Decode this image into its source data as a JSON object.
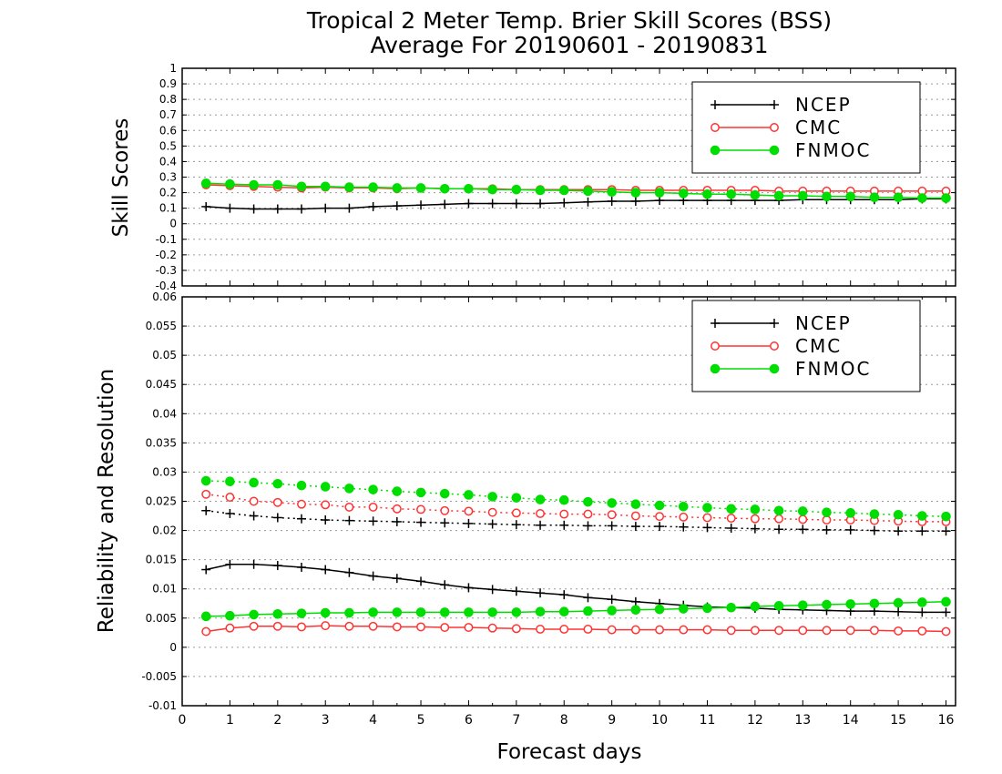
{
  "title": {
    "line1": "Tropical 2 Meter Temp. Brier Skill Scores (BSS)",
    "line2": "Average For 20190601 - 20190831"
  },
  "chart_data": [
    {
      "type": "line",
      "ylabel": "Skill Scores",
      "xlabel": "",
      "xlim": [
        0,
        16.2
      ],
      "ylim": [
        -0.4,
        1
      ],
      "yticks": [
        "1",
        "0.9",
        "0.8",
        "0.7",
        "0.6",
        "0.5",
        "0.4",
        "0.3",
        "0.2",
        "0.1",
        "0",
        "-0.1",
        "-0.2",
        "-0.3",
        "-0.4"
      ],
      "grid": true,
      "legend_position": "top-right",
      "x": [
        0.5,
        1,
        1.5,
        2,
        2.5,
        3,
        3.5,
        4,
        4.5,
        5,
        5.5,
        6,
        6.5,
        7,
        7.5,
        8,
        8.5,
        9,
        9.5,
        10,
        10.5,
        11,
        11.5,
        12,
        12.5,
        13,
        13.5,
        14,
        14.5,
        15,
        15.5,
        16
      ],
      "series": [
        {
          "name": "NCEP",
          "color": "#000000",
          "marker": "plus",
          "style": "solid",
          "values": [
            0.11,
            0.1,
            0.095,
            0.095,
            0.095,
            0.1,
            0.1,
            0.11,
            0.115,
            0.12,
            0.125,
            0.13,
            0.13,
            0.13,
            0.13,
            0.135,
            0.14,
            0.145,
            0.145,
            0.15,
            0.15,
            0.15,
            0.15,
            0.15,
            0.15,
            0.155,
            0.155,
            0.155,
            0.155,
            0.155,
            0.16,
            0.16
          ]
        },
        {
          "name": "CMC",
          "color": "#ff3333",
          "marker": "open-circle",
          "style": "solid",
          "values": [
            0.25,
            0.245,
            0.24,
            0.235,
            0.23,
            0.235,
            0.23,
            0.23,
            0.225,
            0.23,
            0.225,
            0.225,
            0.225,
            0.22,
            0.22,
            0.22,
            0.22,
            0.22,
            0.215,
            0.215,
            0.215,
            0.215,
            0.215,
            0.215,
            0.21,
            0.21,
            0.21,
            0.21,
            0.21,
            0.21,
            0.21,
            0.21
          ]
        },
        {
          "name": "FNMOC",
          "color": "#00dd00",
          "marker": "filled-circle",
          "style": "solid",
          "values": [
            0.26,
            0.255,
            0.25,
            0.25,
            0.24,
            0.24,
            0.235,
            0.235,
            0.23,
            0.23,
            0.225,
            0.225,
            0.22,
            0.22,
            0.215,
            0.215,
            0.21,
            0.205,
            0.2,
            0.2,
            0.195,
            0.19,
            0.19,
            0.185,
            0.18,
            0.18,
            0.175,
            0.175,
            0.17,
            0.17,
            0.165,
            0.165
          ]
        }
      ]
    },
    {
      "type": "line",
      "ylabel": "Reliability and Resolution",
      "xlabel": "Forecast days",
      "xlim": [
        0,
        16.2
      ],
      "ylim": [
        -0.01,
        0.06
      ],
      "yticks": [
        "0.06",
        "0.055",
        "0.05",
        "0.045",
        "0.04",
        "0.035",
        "0.03",
        "0.025",
        "0.02",
        "0.015",
        "0.01",
        "0.005",
        "0",
        "-0.005",
        "-0.01"
      ],
      "xticks": [
        "0",
        "1",
        "2",
        "3",
        "4",
        "5",
        "6",
        "7",
        "8",
        "9",
        "10",
        "11",
        "12",
        "13",
        "14",
        "15",
        "16"
      ],
      "grid": true,
      "legend_position": "top-right",
      "x": [
        0.5,
        1,
        1.5,
        2,
        2.5,
        3,
        3.5,
        4,
        4.5,
        5,
        5.5,
        6,
        6.5,
        7,
        7.5,
        8,
        8.5,
        9,
        9.5,
        10,
        10.5,
        11,
        11.5,
        12,
        12.5,
        13,
        13.5,
        14,
        14.5,
        15,
        15.5,
        16
      ],
      "series": [
        {
          "name": "NCEP",
          "color": "#000000",
          "marker": "plus",
          "style": "dotted",
          "values": [
            0.0234,
            0.0229,
            0.0225,
            0.0222,
            0.022,
            0.0218,
            0.0217,
            0.0216,
            0.0215,
            0.0214,
            0.0213,
            0.0212,
            0.0211,
            0.021,
            0.0209,
            0.0209,
            0.0208,
            0.0208,
            0.0207,
            0.0207,
            0.0206,
            0.0205,
            0.0204,
            0.0203,
            0.0202,
            0.0202,
            0.0201,
            0.0201,
            0.02,
            0.0199,
            0.0199,
            0.0199
          ]
        },
        {
          "name": "NCEP",
          "color": "#000000",
          "marker": "plus",
          "style": "solid",
          "values": [
            0.0133,
            0.0142,
            0.0142,
            0.014,
            0.0137,
            0.0133,
            0.0128,
            0.0122,
            0.0118,
            0.0113,
            0.0107,
            0.0102,
            0.0099,
            0.0096,
            0.0093,
            0.009,
            0.0085,
            0.0082,
            0.0078,
            0.0075,
            0.0072,
            0.0069,
            0.0068,
            0.0067,
            0.0065,
            0.0064,
            0.0063,
            0.0062,
            0.0062,
            0.0061,
            0.006,
            0.006
          ]
        },
        {
          "name": "CMC",
          "color": "#ff3333",
          "marker": "open-circle",
          "style": "dotted",
          "values": [
            0.0262,
            0.0257,
            0.025,
            0.0248,
            0.0245,
            0.0244,
            0.024,
            0.024,
            0.0237,
            0.0236,
            0.0234,
            0.0233,
            0.0231,
            0.023,
            0.0229,
            0.0228,
            0.0228,
            0.0227,
            0.0225,
            0.0224,
            0.0223,
            0.0222,
            0.0221,
            0.022,
            0.022,
            0.0219,
            0.0218,
            0.0218,
            0.0217,
            0.0216,
            0.0215,
            0.0215
          ]
        },
        {
          "name": "CMC",
          "color": "#ff3333",
          "marker": "open-circle",
          "style": "solid",
          "values": [
            0.0027,
            0.0033,
            0.0036,
            0.0036,
            0.0035,
            0.0037,
            0.0036,
            0.0036,
            0.0035,
            0.0035,
            0.0034,
            0.0034,
            0.0033,
            0.0032,
            0.0031,
            0.0031,
            0.0031,
            0.003,
            0.003,
            0.003,
            0.003,
            0.003,
            0.0029,
            0.0029,
            0.0029,
            0.0029,
            0.0029,
            0.0029,
            0.0029,
            0.0028,
            0.0028,
            0.0027
          ]
        },
        {
          "name": "FNMOC",
          "color": "#00dd00",
          "marker": "filled-circle",
          "style": "dotted",
          "values": [
            0.0285,
            0.0284,
            0.0282,
            0.028,
            0.0277,
            0.0275,
            0.0272,
            0.027,
            0.0267,
            0.0265,
            0.0263,
            0.0261,
            0.0258,
            0.0256,
            0.0253,
            0.0252,
            0.0249,
            0.0247,
            0.0245,
            0.0243,
            0.0241,
            0.0239,
            0.0237,
            0.0236,
            0.0234,
            0.0233,
            0.0231,
            0.023,
            0.0228,
            0.0227,
            0.0225,
            0.0224
          ]
        },
        {
          "name": "FNMOC",
          "color": "#00dd00",
          "marker": "filled-circle",
          "style": "solid",
          "values": [
            0.0053,
            0.0054,
            0.0056,
            0.0057,
            0.0058,
            0.0059,
            0.0059,
            0.006,
            0.006,
            0.006,
            0.006,
            0.006,
            0.006,
            0.006,
            0.0061,
            0.0061,
            0.0062,
            0.0063,
            0.0064,
            0.0065,
            0.0066,
            0.0067,
            0.0068,
            0.007,
            0.0071,
            0.0072,
            0.0073,
            0.0074,
            0.0075,
            0.0076,
            0.0077,
            0.0078
          ]
        }
      ]
    }
  ],
  "legend": [
    {
      "name": "NCEP",
      "color": "#000000",
      "marker": "plus"
    },
    {
      "name": "CMC",
      "color": "#ff3333",
      "marker": "open-circle"
    },
    {
      "name": "FNMOC",
      "color": "#00dd00",
      "marker": "filled-circle"
    }
  ]
}
